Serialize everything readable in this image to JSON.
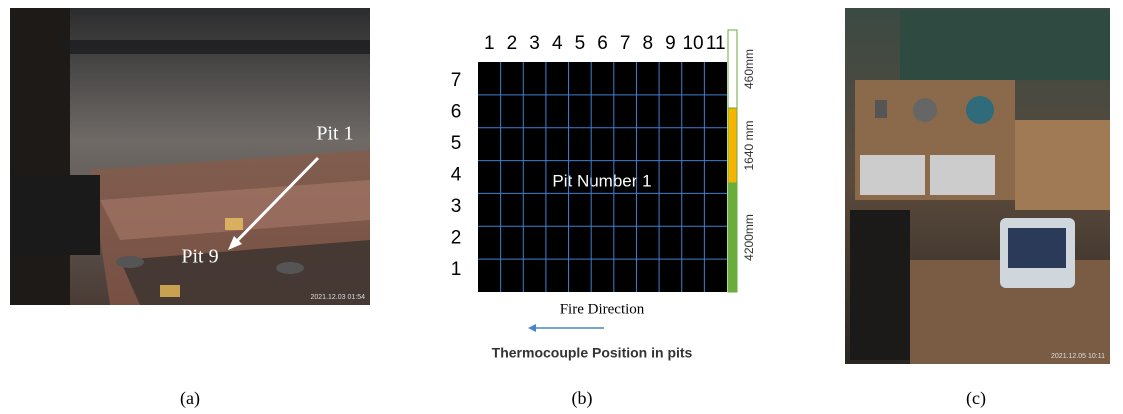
{
  "panels": [
    {
      "caption": "(a)",
      "labels": [
        "Pit 1",
        "Pit 9"
      ],
      "timestamp": "2021.12.03 01:54"
    },
    {
      "caption": "(b)",
      "column_numbers": [
        1,
        2,
        3,
        4,
        5,
        6,
        7,
        8,
        9,
        10,
        11
      ],
      "row_numbers": [
        7,
        6,
        5,
        4,
        3,
        2,
        1
      ],
      "center_label": "Pit Number 1",
      "segments": [
        {
          "label": "460mm",
          "color": "#ffffff"
        },
        {
          "label": "1640 mm",
          "color": "#f5b400"
        },
        {
          "label": "4200mm",
          "color": "#6aad3d"
        }
      ],
      "direction_label": "Fire Direction",
      "title": "Thermocouple Position in pits"
    },
    {
      "caption": "(c)",
      "timestamp": "2021.12.05 10:11"
    }
  ]
}
